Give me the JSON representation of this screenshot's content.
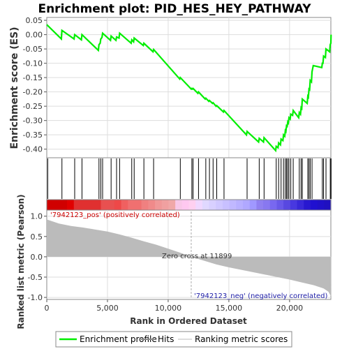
{
  "chart_data": {
    "type": "line",
    "title": "Enrichment plot: PID_HES_HEY_PATHWAY",
    "xlabel": "Rank in Ordered Dataset",
    "ylabel_top": "Enrichment score (ES)",
    "ylabel_bottom": "Ranked list metric (Pearson)",
    "xlim": [
      0,
      23400
    ],
    "es_ylim": [
      -0.43,
      0.06
    ],
    "metric_ylim": [
      -1.05,
      1.15
    ],
    "x_ticks": [
      0,
      5000,
      10000,
      15000,
      20000
    ],
    "x_tick_labels": [
      "0",
      "5,000",
      "10,000",
      "15,000",
      "20,000"
    ],
    "es_ticks": [
      0.05,
      0.0,
      -0.05,
      -0.1,
      -0.15,
      -0.2,
      -0.25,
      -0.3,
      -0.35,
      -0.4
    ],
    "es_tick_labels": [
      "0.05",
      "0.00",
      "-0.05",
      "-0.10",
      "-0.15",
      "-0.20",
      "-0.25",
      "-0.30",
      "-0.35",
      "-0.40"
    ],
    "metric_ticks": [
      1.0,
      0.5,
      0.0,
      -0.5,
      -1.0
    ],
    "metric_tick_labels": [
      "1.0",
      "0.5",
      "0.0",
      "-0.5",
      "-1.0"
    ],
    "zero_cross_rank": 11899,
    "annotations": {
      "pos": "'7942123_pos' (positively correlated)",
      "neg": "'7942123_neg' (negatively correlated)",
      "zero": "Zero cross at 11899"
    },
    "legend": [
      "Enrichment profile",
      "Hits",
      "Ranking metric scores"
    ],
    "hits": [
      80,
      1250,
      2300,
      2900,
      4300,
      4450,
      4600,
      5300,
      5750,
      6000,
      7000,
      7200,
      8000,
      8800,
      11000,
      11950,
      12050,
      12500,
      13100,
      13400,
      13700,
      14000,
      14600,
      16500,
      17500,
      17900,
      18900,
      19100,
      19300,
      19500,
      19650,
      19750,
      19850,
      19950,
      20100,
      20300,
      20800,
      20950,
      21050,
      21500,
      21600,
      21700,
      21850,
      22700,
      22800,
      23000,
      23350,
      23420
    ],
    "es_points": [
      [
        0,
        0.035
      ],
      [
        1200,
        -0.015
      ],
      [
        1250,
        0.015
      ],
      [
        2250,
        -0.015
      ],
      [
        2300,
        0.0
      ],
      [
        2850,
        -0.018
      ],
      [
        2900,
        0.0
      ],
      [
        4250,
        -0.055
      ],
      [
        4300,
        -0.035
      ],
      [
        4400,
        -0.03
      ],
      [
        4450,
        -0.015
      ],
      [
        4550,
        -0.01
      ],
      [
        4600,
        0.005
      ],
      [
        5250,
        -0.02
      ],
      [
        5300,
        -0.005
      ],
      [
        5700,
        -0.02
      ],
      [
        5750,
        -0.008
      ],
      [
        5950,
        -0.012
      ],
      [
        6000,
        0.005
      ],
      [
        6950,
        -0.03
      ],
      [
        7000,
        -0.018
      ],
      [
        7150,
        -0.025
      ],
      [
        7200,
        -0.012
      ],
      [
        7950,
        -0.038
      ],
      [
        8000,
        -0.03
      ],
      [
        8750,
        -0.06
      ],
      [
        8800,
        -0.052
      ],
      [
        10950,
        -0.155
      ],
      [
        11000,
        -0.15
      ],
      [
        11900,
        -0.19
      ],
      [
        11950,
        -0.188
      ],
      [
        12000,
        -0.19
      ],
      [
        12050,
        -0.188
      ],
      [
        12450,
        -0.205
      ],
      [
        12500,
        -0.2
      ],
      [
        13050,
        -0.225
      ],
      [
        13100,
        -0.222
      ],
      [
        13350,
        -0.233
      ],
      [
        13400,
        -0.23
      ],
      [
        13650,
        -0.24
      ],
      [
        13700,
        -0.238
      ],
      [
        13950,
        -0.25
      ],
      [
        14000,
        -0.248
      ],
      [
        14550,
        -0.27
      ],
      [
        14600,
        -0.265
      ],
      [
        16450,
        -0.35
      ],
      [
        16500,
        -0.338
      ],
      [
        17450,
        -0.375
      ],
      [
        17500,
        -0.362
      ],
      [
        17850,
        -0.375
      ],
      [
        17900,
        -0.36
      ],
      [
        18850,
        -0.405
      ],
      [
        18900,
        -0.39
      ],
      [
        19050,
        -0.395
      ],
      [
        19100,
        -0.378
      ],
      [
        19250,
        -0.385
      ],
      [
        19300,
        -0.365
      ],
      [
        19450,
        -0.37
      ],
      [
        19500,
        -0.35
      ],
      [
        19600,
        -0.355
      ],
      [
        19650,
        -0.335
      ],
      [
        19700,
        -0.338
      ],
      [
        19750,
        -0.318
      ],
      [
        19800,
        -0.32
      ],
      [
        19850,
        -0.305
      ],
      [
        19900,
        -0.308
      ],
      [
        19950,
        -0.29
      ],
      [
        20050,
        -0.295
      ],
      [
        20100,
        -0.278
      ],
      [
        20250,
        -0.282
      ],
      [
        20300,
        -0.265
      ],
      [
        20750,
        -0.29
      ],
      [
        20800,
        -0.272
      ],
      [
        20900,
        -0.278
      ],
      [
        20950,
        -0.255
      ],
      [
        21000,
        -0.258
      ],
      [
        21050,
        -0.225
      ],
      [
        21450,
        -0.24
      ],
      [
        21500,
        -0.215
      ],
      [
        21550,
        -0.218
      ],
      [
        21600,
        -0.19
      ],
      [
        21650,
        -0.192
      ],
      [
        21700,
        -0.16
      ],
      [
        21800,
        -0.165
      ],
      [
        21850,
        -0.13
      ],
      [
        21950,
        -0.108
      ],
      [
        22650,
        -0.115
      ],
      [
        22700,
        -0.1
      ],
      [
        22750,
        -0.1
      ],
      [
        22800,
        -0.075
      ],
      [
        22950,
        -0.08
      ],
      [
        23000,
        -0.05
      ],
      [
        23300,
        -0.06
      ],
      [
        23350,
        -0.035
      ],
      [
        23400,
        -0.03
      ],
      [
        23420,
        0.0
      ]
    ],
    "metric_curve": [
      [
        0,
        0.92
      ],
      [
        1000,
        0.82
      ],
      [
        2000,
        0.76
      ],
      [
        3000,
        0.72
      ],
      [
        4000,
        0.67
      ],
      [
        5000,
        0.62
      ],
      [
        6000,
        0.55
      ],
      [
        7000,
        0.47
      ],
      [
        8000,
        0.38
      ],
      [
        9000,
        0.3
      ],
      [
        10000,
        0.2
      ],
      [
        11000,
        0.1
      ],
      [
        11899,
        0.0
      ],
      [
        13000,
        -0.1
      ],
      [
        14000,
        -0.19
      ],
      [
        15000,
        -0.26
      ],
      [
        16000,
        -0.32
      ],
      [
        17000,
        -0.38
      ],
      [
        18000,
        -0.44
      ],
      [
        19000,
        -0.5
      ],
      [
        20000,
        -0.56
      ],
      [
        21000,
        -0.63
      ],
      [
        22000,
        -0.7
      ],
      [
        22800,
        -0.78
      ],
      [
        23200,
        -0.86
      ],
      [
        23420,
        -0.98
      ]
    ],
    "colorbar_colors": [
      "#d00000",
      "#d00000",
      "#d00000",
      "#e00000",
      "#e03030",
      "#e03030",
      "#e03030",
      "#e03030",
      "#e85050",
      "#e85050",
      "#ee4848",
      "#f06060",
      "#f07070",
      "#f07070",
      "#f08080",
      "#f08a8a",
      "#f09898",
      "#f0a0a0",
      "#f0a8a8",
      "#f8c8e8",
      "#ffc8f0",
      "#ffd0f0",
      "#f0d8ff",
      "#e0d8ff",
      "#d8d0ff",
      "#d0c8ff",
      "#c8c0ff",
      "#c0b8ff",
      "#b8b0ff",
      "#b0a8ff",
      "#a098ff",
      "#9080f0",
      "#8878f0",
      "#7868f0",
      "#6858e8",
      "#5848e0",
      "#4838e0",
      "#3828d8",
      "#2818d0",
      "#2010d0",
      "#2010c8",
      "#2010c0"
    ]
  }
}
